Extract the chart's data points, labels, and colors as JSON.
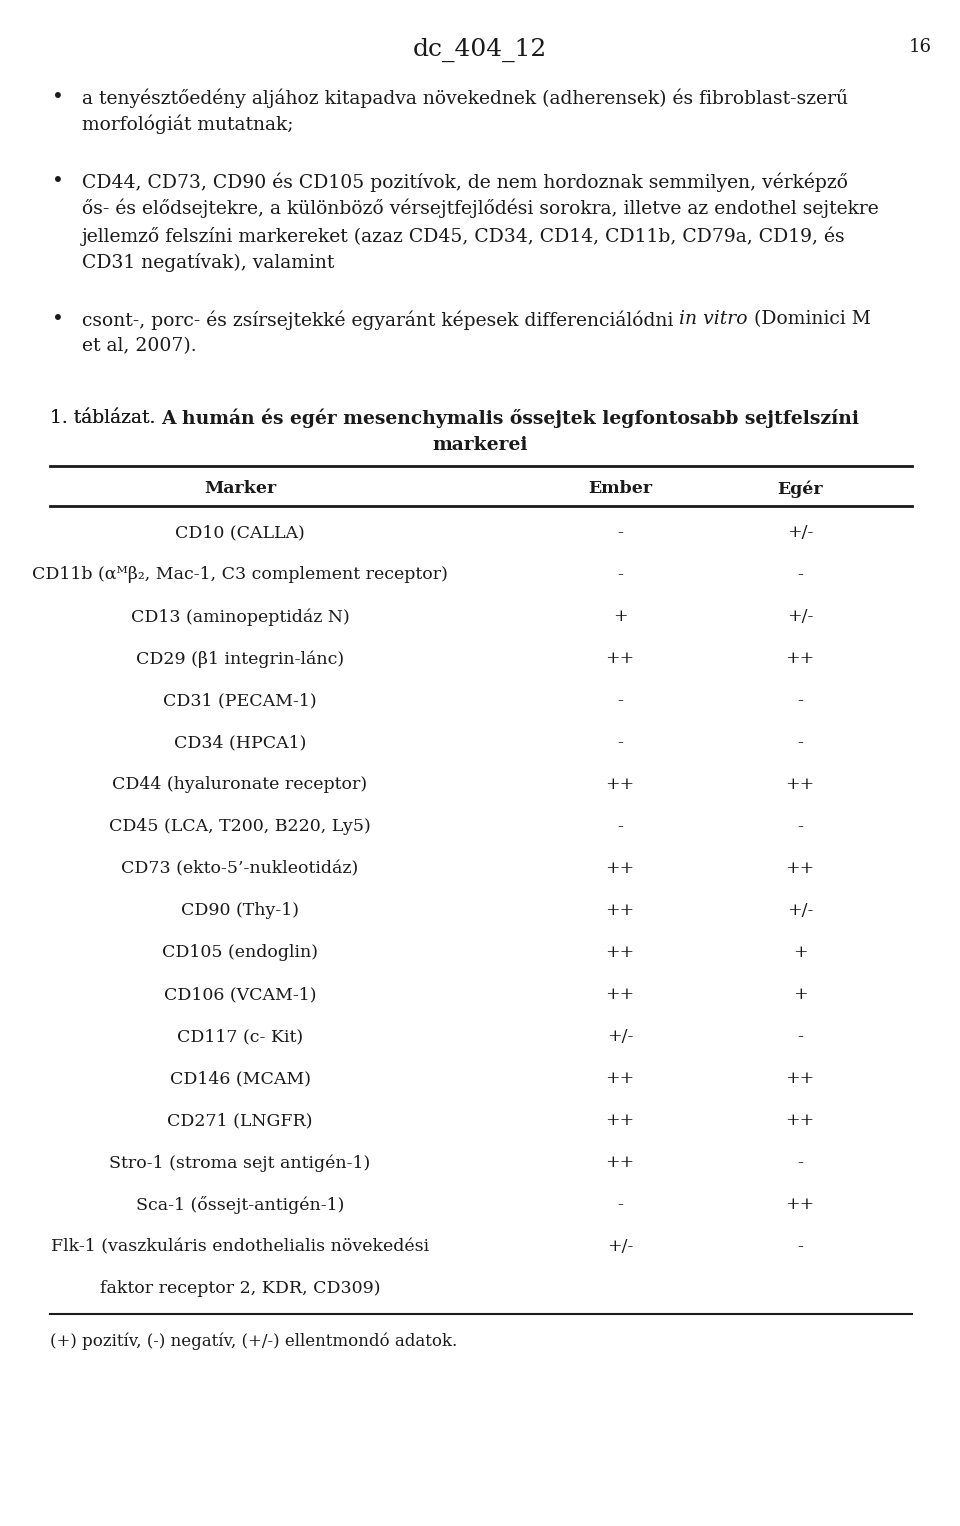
{
  "page_title": "dc_404_12",
  "page_number": "16",
  "bg_color": "#ffffff",
  "text_color": "#1a1a1a",
  "font_size_body": 13.5,
  "font_size_title": 18,
  "font_size_table": 12.5,
  "font_size_footnote": 12.0,
  "bullet1_lines": [
    "a tenyésztőedény aljához kitapadva növekednek (adherensek) és fibroblast-szerű",
    "morfológiát mutatnak;"
  ],
  "bullet2_lines": [
    "CD44, CD73, CD90 és CD105 pozitívok, de nem hordoznak semmilyen, vérképző",
    "ős- és elődsejtekre, a különböző vérsejtfejlődési sorokra, illetve az endothel sejtekre",
    "jellemző felszíni markereket (azaz CD45, CD34, CD14, CD11b, CD79a, CD19, és",
    "CD31 negatívak), valamint"
  ],
  "bullet3_before": "csont-, porc- és zsírsejtekké egyaránt képesek differenciálódni ",
  "bullet3_italic": "in vitro",
  "bullet3_after": " (Dominici M",
  "bullet3_line2": "et al, 2007).",
  "table_caption_prefix": "1. táblázat.",
  "table_caption_bold1": "A humán és egér mesenchymalis őssejtek legfontosabb sejtfelszíni",
  "table_caption_bold2": "markerei",
  "table_headers": [
    "Marker",
    "Ember",
    "Egér"
  ],
  "table_rows": [
    [
      "CD10 (CALLA)",
      "-",
      "+/-"
    ],
    [
      "CD11b (αᴹβ₂, Mac-1, C3 complement receptor)",
      "-",
      "-"
    ],
    [
      "CD13 (aminopeptidáz N)",
      "+",
      "+/-"
    ],
    [
      "CD29 (β1 integrin-lánc)",
      "++",
      "++"
    ],
    [
      "CD31 (PECAM-1)",
      "-",
      "-"
    ],
    [
      "CD34 (HPCA1)",
      "-",
      "-"
    ],
    [
      "CD44 (hyaluronate receptor)",
      "++",
      "++"
    ],
    [
      "CD45 (LCA, T200, B220, Ly5)",
      "-",
      "-"
    ],
    [
      "CD73 (ekto-5’-nukleotidáz)",
      "++",
      "++"
    ],
    [
      "CD90 (Thy-1)",
      "++",
      "+/-"
    ],
    [
      "CD105 (endoglin)",
      "++",
      "+"
    ],
    [
      "CD106 (VCAM-1)",
      "++",
      "+"
    ],
    [
      "CD117 (c- Kit)",
      "+/-",
      "-"
    ],
    [
      "CD146 (MCAM)",
      "++",
      "++"
    ],
    [
      "CD271 (LNGFR)",
      "++",
      "++"
    ],
    [
      "Stro-1 (stroma sejt antigén-1)",
      "++",
      "-"
    ],
    [
      "Sca-1 (őssejt-antigén-1)",
      "-",
      "++"
    ],
    [
      "Flk-1 (vaszkuláris endothelialis növekedési",
      "+/-",
      "-"
    ],
    [
      "faktor receptor 2, KDR, CD309)",
      "",
      ""
    ]
  ],
  "table_footnote": "(+) pozitív, (-) negatív, (+/-) ellentmondó adatok."
}
